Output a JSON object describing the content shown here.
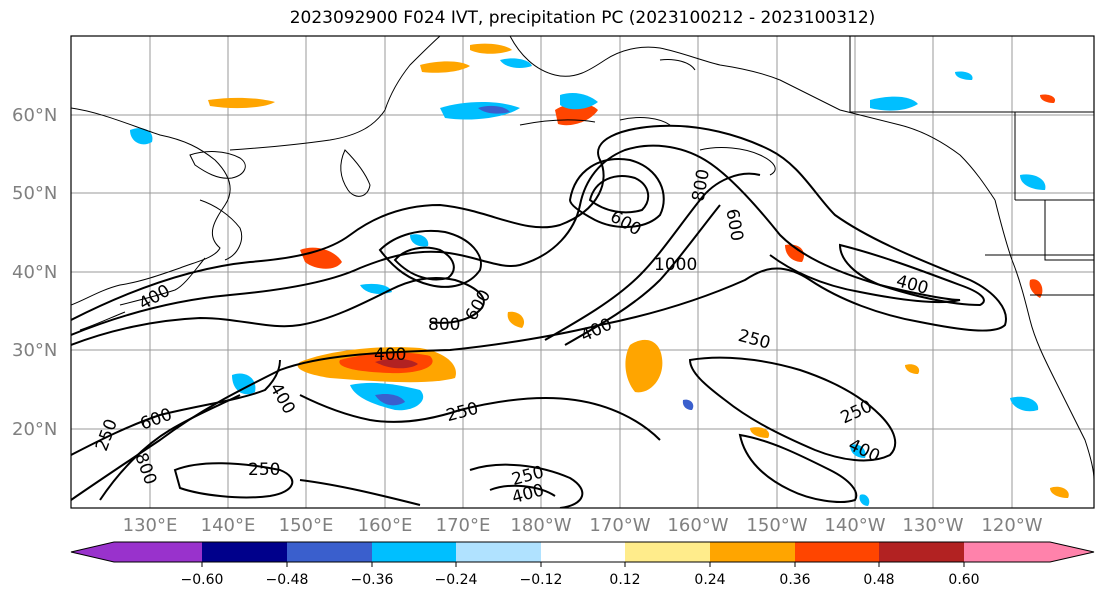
{
  "title": "2023092900 F024 IVT, precipitation PC (2023100212 - 2023100312)",
  "lat_labels": [
    "60°N",
    "50°N",
    "40°N",
    "30°N",
    "20°N"
  ],
  "lon_labels": [
    "130°E",
    "140°E",
    "150°E",
    "160°E",
    "170°E",
    "180°W",
    "170°W",
    "160°W",
    "150°W",
    "140°W",
    "130°W",
    "120°W"
  ],
  "colorbar": {
    "ticks": [
      "−0.60",
      "−0.48",
      "−0.36",
      "−0.24",
      "−0.12",
      "0.12",
      "0.24",
      "0.36",
      "0.48",
      "0.60"
    ],
    "colors": [
      "#9932CC",
      "#00008B",
      "#3A5FCD",
      "#00BFFF",
      "#B0E2FF",
      "#FFFFFF",
      "#FFEC8B",
      "#FFA500",
      "#FF4500",
      "#B22222",
      "#FF82AB"
    ]
  },
  "contour_labels": [
    "250",
    "400",
    "600",
    "800",
    "1000"
  ]
}
